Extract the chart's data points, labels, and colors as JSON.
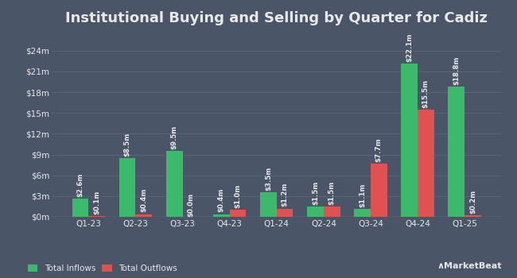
{
  "title": "Institutional Buying and Selling by Quarter for Cadiz",
  "quarters": [
    "Q1-23",
    "Q2-23",
    "Q3-23",
    "Q4-23",
    "Q1-24",
    "Q2-24",
    "Q3-24",
    "Q4-24",
    "Q1-25"
  ],
  "inflows": [
    2.6,
    8.5,
    9.5,
    0.4,
    3.5,
    1.5,
    1.1,
    22.1,
    18.8
  ],
  "outflows": [
    0.1,
    0.4,
    0.0,
    1.0,
    1.2,
    1.5,
    7.7,
    15.5,
    0.2
  ],
  "inflow_labels": [
    "$2.6m",
    "$8.5m",
    "$9.5m",
    "$0.4m",
    "$3.5m",
    "$1.5m",
    "$1.1m",
    "$22.1m",
    "$18.8m"
  ],
  "outflow_labels": [
    "$0.1m",
    "$0.4m",
    "$0.0m",
    "$1.0m",
    "$1.2m",
    "$1.5m",
    "$7.7m",
    "$15.5m",
    "$0.2m"
  ],
  "inflow_color": "#3cb96a",
  "outflow_color": "#e05252",
  "background_color": "#4a5568",
  "plot_bg_color": "#4a5568",
  "grid_color": "#5a6478",
  "text_color": "#e8e8e8",
  "yticks": [
    0,
    3,
    6,
    9,
    12,
    15,
    18,
    21,
    24
  ],
  "ytick_labels": [
    "$0m",
    "$3m",
    "$6m",
    "$9m",
    "$12m",
    "$15m",
    "$18m",
    "$21m",
    "$24m"
  ],
  "ylim": [
    0,
    26.5
  ],
  "bar_width": 0.35,
  "legend_labels": [
    "Total Inflows",
    "Total Outflows"
  ],
  "title_fontsize": 13,
  "label_fontsize": 6.2,
  "tick_fontsize": 7.5,
  "legend_fontsize": 7.5
}
